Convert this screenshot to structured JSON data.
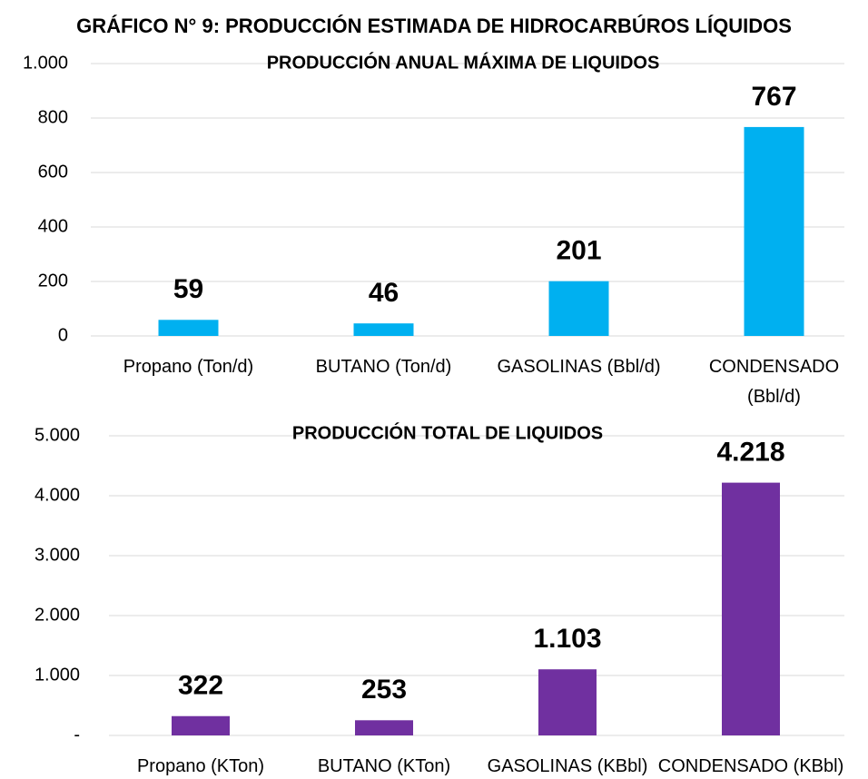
{
  "title": "GRÁFICO N° 9: PRODUCCIÓN ESTIMADA DE HIDROCARBÚROS LÍQUIDOS",
  "chart_data": [
    {
      "type": "bar",
      "title": "PRODUCCIÓN ANUAL MÁXIMA DE LIQUIDOS",
      "categories": [
        "Propano (Ton/d)",
        "BUTANO (Ton/d)",
        "GASOLINAS (Bbl/d)",
        "CONDENSADO\n(Bbl/d)"
      ],
      "values": [
        59,
        46,
        201,
        767
      ],
      "color": "#00b0f0",
      "ylim": [
        0,
        1000
      ],
      "yticks": [
        0,
        200,
        400,
        600,
        800,
        {
          "value": 1000,
          "label": "1.000"
        }
      ],
      "grid": true
    },
    {
      "type": "bar",
      "title": "PRODUCCIÓN TOTAL DE LIQUIDOS",
      "categories": [
        "Propano (KTon)",
        "BUTANO (KTon)",
        "GASOLINAS (KBbl)",
        "CONDENSADO (KBbl)"
      ],
      "values": [
        322,
        253,
        1103,
        4218
      ],
      "value_labels": [
        "322",
        "253",
        "1.103",
        "4.218"
      ],
      "color": "#7030a0",
      "ylim": [
        0,
        5000
      ],
      "yticks": [
        {
          "value": 0,
          "label": "-"
        },
        {
          "value": 1000,
          "label": "1.000"
        },
        {
          "value": 2000,
          "label": "2.000"
        },
        {
          "value": 3000,
          "label": "3.000"
        },
        {
          "value": 4000,
          "label": "4.000"
        },
        {
          "value": 5000,
          "label": "5.000"
        }
      ],
      "grid": true
    }
  ]
}
